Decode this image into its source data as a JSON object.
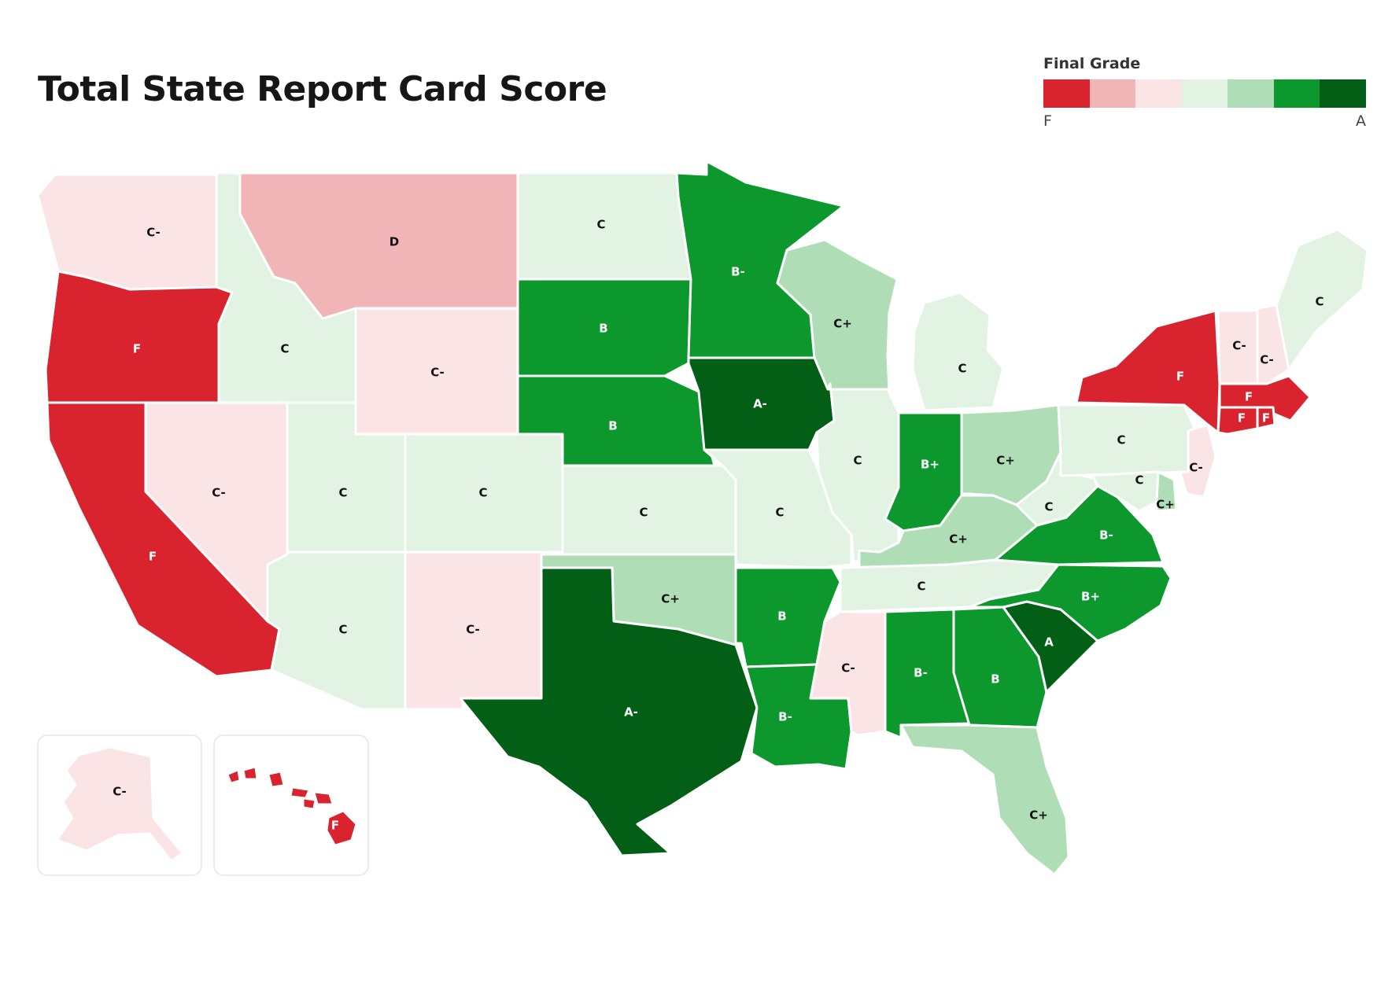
{
  "title": "Total State Report Card Score",
  "legend": {
    "title": "Final Grade",
    "low_label": "F",
    "high_label": "A",
    "colors": [
      "#d9232e",
      "#f1b4b7",
      "#fbe4e6",
      "#e2f3e4",
      "#afdeb6",
      "#0c982d",
      "#035f16"
    ]
  },
  "grade_colors": {
    "F": "#d9232e",
    "D": "#f1b4b7",
    "C-": "#fbe4e6",
    "C": "#e2f3e4",
    "C+": "#afdeb6",
    "B-": "#0c982d",
    "B": "#0c982d",
    "B+": "#0c982d",
    "A-": "#035f16",
    "A": "#035f16"
  },
  "states": {
    "WA": "C-",
    "OR": "F",
    "CA": "F",
    "NV": "C-",
    "ID": "C",
    "MT": "D",
    "WY": "C-",
    "UT": "C",
    "AZ": "C",
    "CO": "C",
    "NM": "C-",
    "ND": "C",
    "SD": "B",
    "NE": "B",
    "KS": "C",
    "OK": "C+",
    "TX": "A-",
    "MN": "B-",
    "IA": "A-",
    "MO": "C",
    "AR": "B",
    "LA": "B-",
    "WI": "C+",
    "IL": "C",
    "MI": "C",
    "IN": "B+",
    "OH": "C+",
    "KY": "C+",
    "TN": "C",
    "MS": "C-",
    "AL": "B-",
    "GA": "B",
    "FL": "C+",
    "SC": "A",
    "NC": "B+",
    "VA": "B-",
    "WV": "C",
    "PA": "C",
    "NY": "F",
    "NJ": "C-",
    "DE": "C+",
    "MD": "C",
    "ME": "C",
    "NH": "C-",
    "VT": "C-",
    "MA": "F",
    "CT": "F",
    "RI": "F",
    "AK": "C-",
    "HI": "F"
  }
}
